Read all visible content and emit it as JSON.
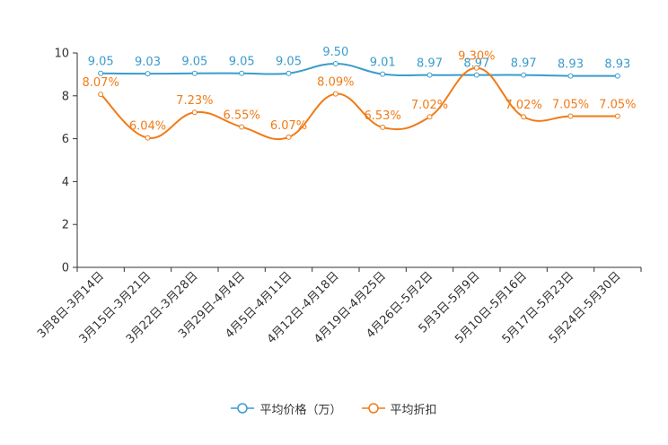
{
  "chart_data": {
    "type": "line",
    "title": "",
    "xlabel": "",
    "ylabel": "",
    "ylim": [
      0,
      10
    ],
    "yticks": [
      0,
      2,
      4,
      6,
      8,
      10
    ],
    "categories": [
      "3月8日-3月14日",
      "3月15日-3月21日",
      "3月22日-3月28日",
      "3月29日-4月4日",
      "4月5日-4月11日",
      "4月12日-4月18日",
      "4月19日-4月25日",
      "4月26日-5月2日",
      "5月3日-5月9日",
      "5月10日-5月16日",
      "5月17日-5月23日",
      "5月24日-5月30日"
    ],
    "series": [
      {
        "name": "平均价格（万）",
        "color": "#3a9ccd",
        "values": [
          9.05,
          9.03,
          9.05,
          9.05,
          9.05,
          9.5,
          9.01,
          8.97,
          8.97,
          8.97,
          8.93,
          8.93
        ],
        "labels": [
          "9.05",
          "9.03",
          "9.05",
          "9.05",
          "9.05",
          "9.50",
          "9.01",
          "8.97",
          "8.97",
          "8.97",
          "8.93",
          "8.93"
        ]
      },
      {
        "name": "平均折扣",
        "color": "#f07b17",
        "values": [
          8.07,
          6.04,
          7.23,
          6.55,
          6.07,
          8.09,
          6.53,
          7.02,
          9.3,
          7.02,
          7.05,
          7.05
        ],
        "labels": [
          "8.07%",
          "6.04%",
          "7.23%",
          "6.55%",
          "6.07%",
          "8.09%",
          "6.53%",
          "7.02%",
          "9.30%",
          "7.02%",
          "7.05%",
          "7.05%"
        ]
      }
    ],
    "legend_position": "bottom-center"
  }
}
